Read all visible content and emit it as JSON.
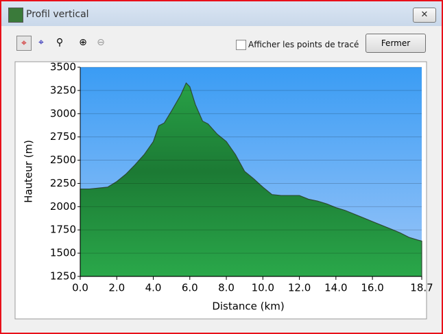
{
  "window": {
    "title": "Profil vertical"
  },
  "toolbar": {
    "checkbox_label": "Afficher les points de tracé",
    "close_button": "Fermer"
  },
  "chart_data": {
    "type": "area",
    "xlabel": "Distance   (km)",
    "ylabel": "Hauteur (m)",
    "x": [
      0,
      0.5,
      1,
      1.5,
      2,
      2.5,
      3,
      3.5,
      4,
      4.3,
      4.6,
      5,
      5.5,
      5.8,
      6,
      6.3,
      6.7,
      7,
      7.5,
      8,
      8.5,
      9,
      9.5,
      10,
      10.5,
      11,
      11.5,
      12,
      12.5,
      13,
      13.5,
      14,
      14.5,
      15,
      15.5,
      16,
      16.5,
      17,
      17.5,
      18,
      18.5,
      18.7
    ],
    "values": [
      2190,
      2190,
      2200,
      2210,
      2270,
      2350,
      2450,
      2560,
      2700,
      2870,
      2900,
      3030,
      3200,
      3330,
      3290,
      3100,
      2920,
      2890,
      2780,
      2700,
      2560,
      2380,
      2300,
      2210,
      2130,
      2120,
      2120,
      2120,
      2080,
      2060,
      2030,
      1990,
      1960,
      1920,
      1880,
      1840,
      1800,
      1760,
      1720,
      1670,
      1640,
      1630
    ],
    "xlim": [
      0,
      18.7
    ],
    "ylim": [
      1250,
      3500
    ],
    "xticks": [
      {
        "value": 0,
        "label": "0.0"
      },
      {
        "value": 2,
        "label": "2.0"
      },
      {
        "value": 4,
        "label": "4.0"
      },
      {
        "value": 6,
        "label": "6.0"
      },
      {
        "value": 8,
        "label": "8.0"
      },
      {
        "value": 10,
        "label": "10.0"
      },
      {
        "value": 12,
        "label": "12.0"
      },
      {
        "value": 14,
        "label": "14.0"
      },
      {
        "value": 16,
        "label": "16.0"
      },
      {
        "value": 18.7,
        "label": "18.7"
      }
    ],
    "yticks": [
      1250,
      1500,
      1750,
      2000,
      2250,
      2500,
      2750,
      3000,
      3250,
      3500
    ],
    "grid": true,
    "color": "#1f9a3e"
  }
}
